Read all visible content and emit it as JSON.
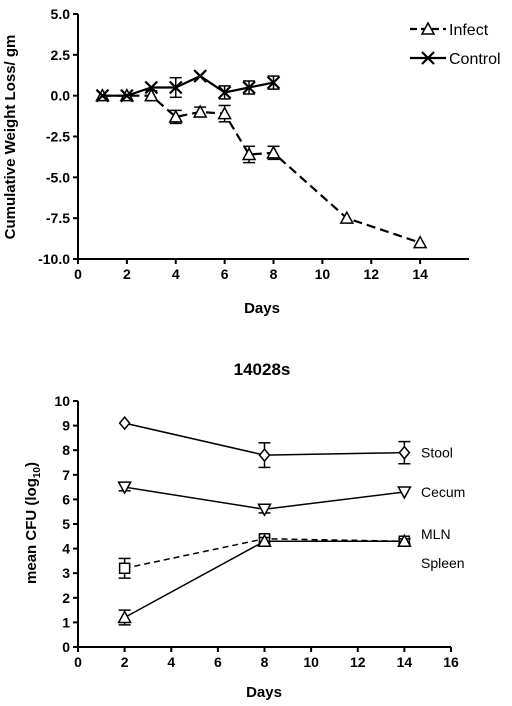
{
  "chart_data": [
    {
      "type": "line",
      "title": "",
      "xlabel": "Days",
      "ylabel": "Cumulative Weight Loss/ gm",
      "xlim": [
        0,
        16
      ],
      "ylim": [
        -10,
        5
      ],
      "xticks": [
        0,
        2,
        4,
        6,
        8,
        10,
        12,
        14
      ],
      "xtick_labels": [
        "0",
        "2",
        "4",
        "6",
        "8",
        "10",
        "12",
        "14"
      ],
      "yticks": [
        -10,
        -7.5,
        -5,
        -2.5,
        0,
        2.5,
        5
      ],
      "ytick_labels": [
        "-10.0",
        "-7.5",
        "-5.0",
        "-2.5",
        "0.0",
        "2.5",
        "5.0"
      ],
      "legend_position": "top-right",
      "grid": false,
      "series": [
        {
          "name": "Infect",
          "marker": "triangle-up",
          "line": "dashed",
          "x": [
            1,
            2,
            3,
            4,
            5,
            6,
            7,
            8,
            11,
            14
          ],
          "y": [
            0.0,
            0.0,
            0.0,
            -1.3,
            -1.0,
            -1.1,
            -3.6,
            -3.5,
            -7.5,
            -9.0
          ],
          "err": [
            0,
            0,
            0.3,
            0.4,
            0.3,
            0.5,
            0.5,
            0.4,
            0,
            0
          ]
        },
        {
          "name": "Control",
          "marker": "x",
          "line": "solid",
          "x": [
            1,
            2,
            3,
            4,
            5,
            6,
            7,
            8
          ],
          "y": [
            0.0,
            0.0,
            0.5,
            0.5,
            1.2,
            0.2,
            0.5,
            0.8
          ],
          "err": [
            0,
            0,
            0,
            0.6,
            0,
            0.4,
            0.4,
            0.4
          ]
        }
      ]
    },
    {
      "type": "line",
      "title": "14028s",
      "xlabel": "Days",
      "ylabel_main": "mean CFU (log",
      "ylabel_sub": "10",
      "ylabel_close": ")",
      "xlim": [
        0,
        16
      ],
      "ylim": [
        0,
        10
      ],
      "xticks": [
        0,
        2,
        4,
        6,
        8,
        10,
        12,
        14,
        16
      ],
      "xtick_labels": [
        "0",
        "2",
        "4",
        "6",
        "8",
        "10",
        "12",
        "14",
        "16"
      ],
      "yticks": [
        0,
        1,
        2,
        3,
        4,
        5,
        6,
        7,
        8,
        9,
        10
      ],
      "ytick_labels": [
        "0",
        "1",
        "2",
        "3",
        "4",
        "5",
        "6",
        "7",
        "8",
        "9",
        "10"
      ],
      "grid": false,
      "series": [
        {
          "name": "Stool",
          "marker": "diamond",
          "line": "solid",
          "x": [
            2,
            8,
            14
          ],
          "y": [
            9.1,
            7.8,
            7.9
          ],
          "err": [
            0,
            0.5,
            0.45
          ]
        },
        {
          "name": "Cecum",
          "marker": "triangle-down",
          "line": "solid",
          "x": [
            2,
            8,
            14
          ],
          "y": [
            6.5,
            5.6,
            6.3
          ],
          "err": [
            0.15,
            0.15,
            0
          ]
        },
        {
          "name": "MLN",
          "marker": "square",
          "line": "dashed",
          "x": [
            2,
            8,
            14
          ],
          "y": [
            3.2,
            4.4,
            4.3
          ],
          "err": [
            0.4,
            0.15,
            0.1
          ]
        },
        {
          "name": "Spleen",
          "marker": "triangle-up",
          "line": "solid",
          "x": [
            2,
            8,
            14
          ],
          "y": [
            1.2,
            4.3,
            4.3
          ],
          "err": [
            0.3,
            0.15,
            0.1
          ]
        }
      ]
    }
  ]
}
